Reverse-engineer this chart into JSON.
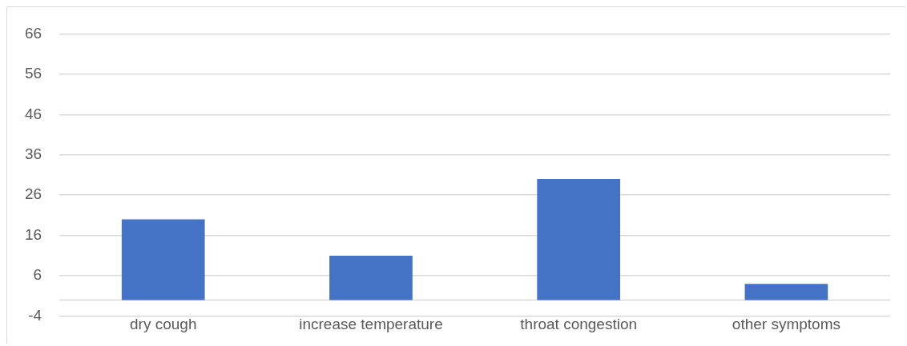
{
  "chart_data": {
    "type": "bar",
    "categories": [
      "dry cough",
      "increase temperature",
      "throat congestion",
      "other symptoms"
    ],
    "values": [
      20,
      11,
      30,
      4
    ],
    "color": "#4472c4",
    "ylim": [
      -4,
      66
    ],
    "yticks": [
      -4,
      6,
      16,
      26,
      36,
      46,
      56,
      66
    ],
    "grid": "y"
  }
}
